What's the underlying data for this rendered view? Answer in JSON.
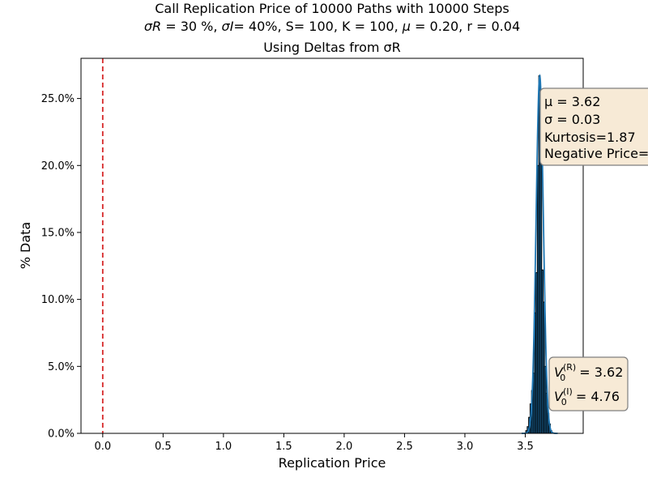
{
  "chart_data": {
    "type": "bar",
    "title": {
      "line1": "Call Replication Price of 10000 Paths with 10000 Steps",
      "line2": {
        "sigma_R_label": "σR",
        "sigma_R_value": " = 30 %, ",
        "sigma_I_label": "σI",
        "sigma_I_value": "= 40%, S= 100, K = 100, ",
        "mu_label": "μ",
        "rest": " = 0.20, r = 0.04"
      },
      "line3": "Using Deltas from σR"
    },
    "xlabel": "Replication Price",
    "ylabel": "% Data",
    "xlim": [
      -0.18,
      3.98
    ],
    "ylim": [
      0,
      0.28
    ],
    "x_ticks": [
      0.0,
      0.5,
      1.0,
      1.5,
      2.0,
      2.5,
      3.0,
      3.5
    ],
    "x_tick_labels": [
      "0.0",
      "0.5",
      "1.0",
      "1.5",
      "2.0",
      "2.5",
      "3.0",
      "3.5"
    ],
    "y_ticks": [
      0.0,
      0.05,
      0.1,
      0.15,
      0.2,
      0.25
    ],
    "y_tick_labels": [
      "0.0%",
      "5.0%",
      "10.0%",
      "15.0%",
      "20.0%",
      "25.0%"
    ],
    "histogram": {
      "bin_width": 0.012,
      "bins_center": [
        3.51,
        3.522,
        3.534,
        3.546,
        3.558,
        3.57,
        3.582,
        3.594,
        3.606,
        3.618,
        3.63,
        3.642,
        3.654,
        3.666,
        3.678,
        3.69,
        3.702,
        3.714
      ],
      "values": [
        0.002,
        0.005,
        0.012,
        0.022,
        0.032,
        0.045,
        0.09,
        0.12,
        0.2,
        0.267,
        0.205,
        0.122,
        0.098,
        0.05,
        0.03,
        0.015,
        0.007,
        0.002
      ],
      "edge_color": "#000000",
      "fill_color": "#1f77b4"
    },
    "density_curve": {
      "color": "#1f77b4",
      "mu": 3.62,
      "sigma": 0.03
    },
    "reference_line": {
      "x": 0.0,
      "y_top": 0.28,
      "color": "#d62728",
      "style": "dashed"
    },
    "stats_box": {
      "mu_text": "μ = 3.62",
      "sigma_text": "σ = 0.03",
      "kurtosis_text": "Kurtosis=1.87",
      "negative_price_text": "Negative Price=",
      "background": "#f7ead6",
      "border": "#7f7f7f"
    },
    "value_box": {
      "v_r_prefix": "V",
      "v_r_sup": "(R)",
      "v_r_sub": "0",
      "v_r_value": " = 3.62",
      "v_i_prefix": "V",
      "v_i_sup": "(I)",
      "v_i_sub": "0",
      "v_i_value": " = 4.76",
      "background": "#f7ead6",
      "border": "#7f7f7f"
    },
    "grid": false,
    "legend": "none"
  }
}
